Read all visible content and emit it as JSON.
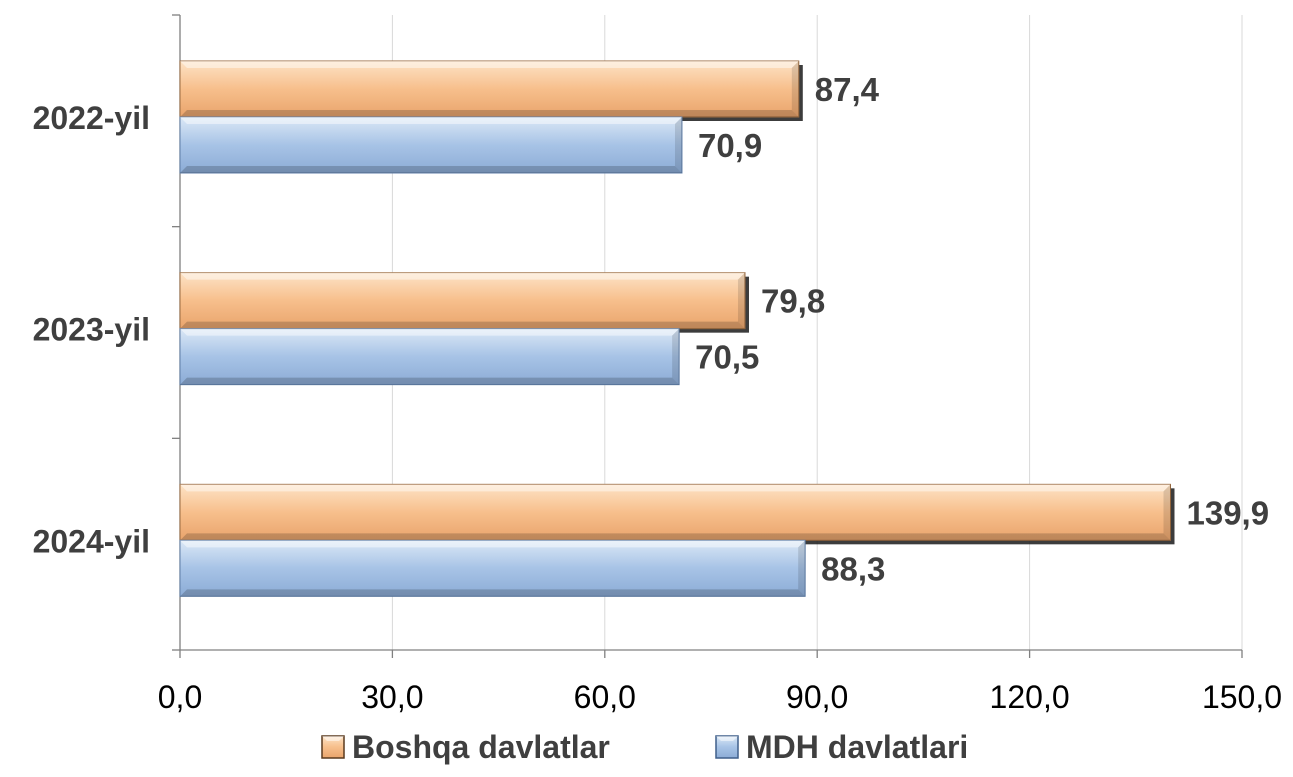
{
  "chart_data": {
    "type": "bar",
    "orientation": "horizontal",
    "categories": [
      "2022-yil",
      "2023-yil",
      "2024-yil"
    ],
    "series": [
      {
        "name": "Boshqa davlatlar",
        "values": [
          87.4,
          79.8,
          139.9
        ],
        "labels": [
          "87,4",
          "79,8",
          "139,9"
        ],
        "color": "#f7bf8c"
      },
      {
        "name": "MDH davlatlari",
        "values": [
          70.9,
          70.5,
          88.3
        ],
        "labels": [
          "70,9",
          "70,5",
          "88,3"
        ],
        "color": "#a7c3e6"
      }
    ],
    "xlim": [
      0,
      150
    ],
    "xticks": [
      0,
      30,
      60,
      90,
      120,
      150
    ],
    "xtick_labels": [
      "0,0",
      "30,0",
      "60,0",
      "90,0",
      "120,0",
      "150,0"
    ],
    "grid": "vertical",
    "legend_position": "bottom"
  }
}
